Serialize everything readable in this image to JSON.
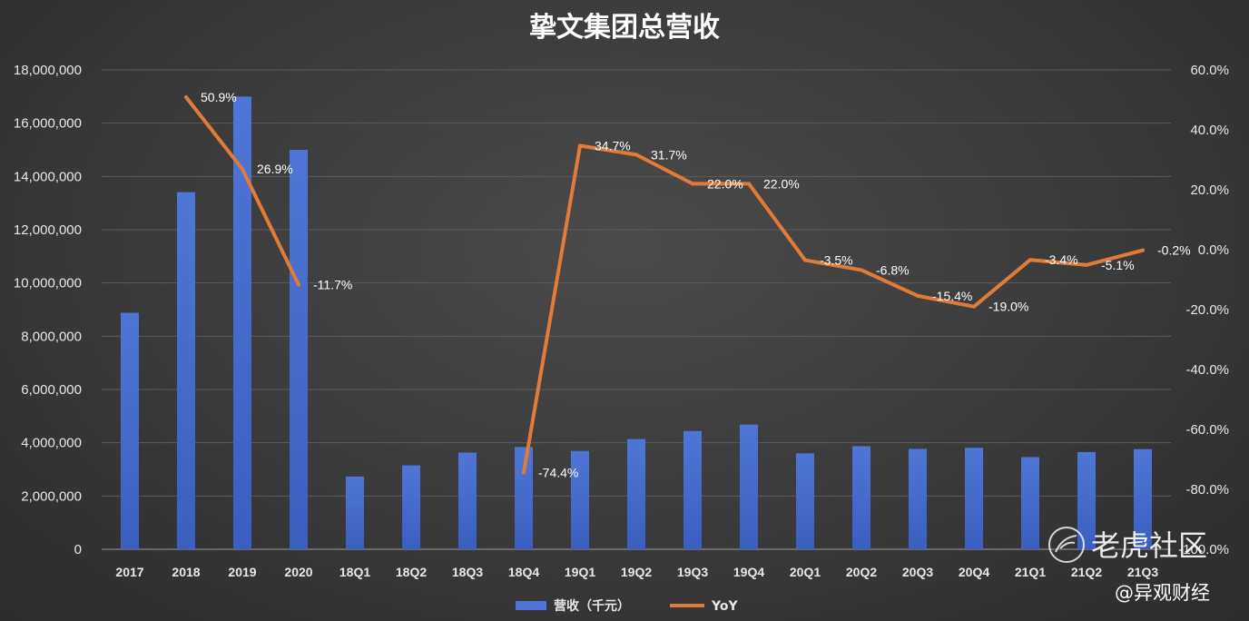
{
  "chart_data": {
    "type": "bar",
    "title": "挚文集团总营收",
    "categories": [
      "2017",
      "2018",
      "2019",
      "2020",
      "18Q1",
      "18Q2",
      "18Q3",
      "18Q4",
      "19Q1",
      "19Q2",
      "19Q3",
      "19Q4",
      "20Q1",
      "20Q2",
      "20Q3",
      "20Q4",
      "21Q1",
      "21Q2",
      "21Q3"
    ],
    "series": [
      {
        "name": "营收（千元）",
        "type": "bar",
        "axis": "left",
        "color": "#4f76d6",
        "values": [
          8880000,
          13410000,
          17000000,
          15000000,
          2730000,
          3150000,
          3630000,
          3840000,
          3690000,
          4140000,
          4440000,
          4680000,
          3600000,
          3870000,
          3770000,
          3810000,
          3460000,
          3650000,
          3760000
        ]
      },
      {
        "name": "YoY",
        "type": "line",
        "axis": "right",
        "color": "#e07b39",
        "values": [
          null,
          50.9,
          26.9,
          -11.7,
          null,
          null,
          null,
          -74.4,
          34.7,
          31.7,
          22.0,
          22.0,
          -3.5,
          -6.8,
          -15.4,
          -19.0,
          -3.4,
          -5.1,
          -0.2
        ],
        "labels": [
          null,
          "50.9%",
          "26.9%",
          "-11.7%",
          null,
          null,
          null,
          "-74.4%",
          "34.7%",
          "31.7%",
          "22.0%",
          "22.0%",
          "-3.5%",
          "-6.8%",
          "-15.4%",
          "-19.0%",
          "-3.4%",
          "-5.1%",
          "-0.2%"
        ]
      }
    ],
    "y_left": {
      "ylim": [
        0,
        18000000
      ],
      "ticks": [
        "0",
        "2,000,000",
        "4,000,000",
        "6,000,000",
        "8,000,000",
        "10,000,000",
        "12,000,000",
        "14,000,000",
        "16,000,000",
        "18,000,000"
      ]
    },
    "y_right": {
      "ylim": [
        -100,
        60
      ],
      "ticks": [
        "-100.0%",
        "-80.0%",
        "-60.0%",
        "-40.0%",
        "-20.0%",
        "0.0%",
        "20.0%",
        "40.0%",
        "60.0%"
      ]
    },
    "grid": true,
    "legend_position": "bottom-center",
    "legend": [
      {
        "label": "营收（千元）",
        "kind": "bar",
        "color": "#4f76d6"
      },
      {
        "label": "YoY",
        "kind": "line",
        "color": "#e07b39"
      }
    ]
  },
  "watermarks": {
    "logo_text": "老虎社区",
    "credit": "@异观财经"
  }
}
